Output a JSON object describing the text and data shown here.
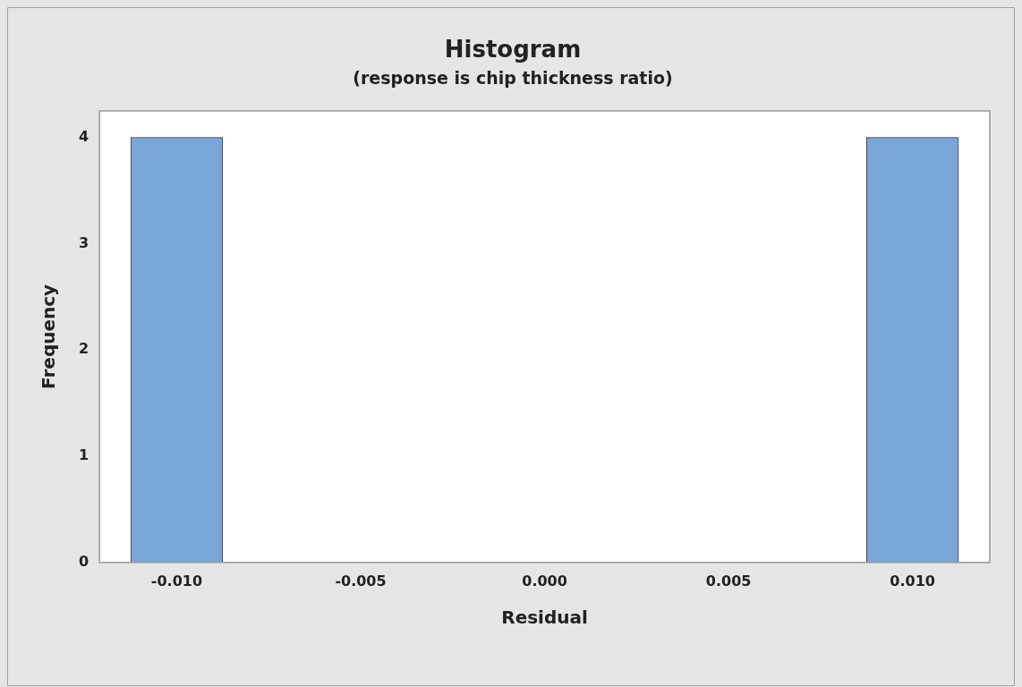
{
  "chart_data": {
    "type": "histogram",
    "title": "Histogram",
    "subtitle": "(response is chip thickness ratio)",
    "xlabel": "Residual",
    "ylabel": "Frequency",
    "bins": [
      -0.01125,
      -0.00875,
      -0.00625,
      -0.00375,
      -0.00125,
      0.00125,
      0.00375,
      0.00625,
      0.00875,
      0.01125
    ],
    "values": [
      4,
      0,
      0,
      0,
      0,
      0,
      0,
      0,
      4
    ],
    "color": "#7ba7d8",
    "xlim": [
      -0.0121,
      0.0121
    ],
    "xticks": [
      {
        "value": -0.01,
        "label": "-0.010"
      },
      {
        "value": -0.005,
        "label": "-0.005"
      },
      {
        "value": 0,
        "label": "0.000"
      },
      {
        "value": 0.005,
        "label": "0.005"
      },
      {
        "value": 0.01,
        "label": "0.010"
      }
    ],
    "ylim": [
      0,
      4.25
    ],
    "yticks": [
      0,
      1,
      2,
      3,
      4
    ],
    "grid": false,
    "legend": false
  }
}
